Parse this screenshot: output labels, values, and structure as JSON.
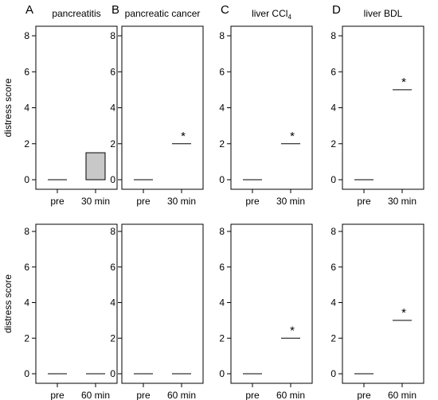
{
  "figure": {
    "ylabel": "distress score",
    "yticks": [
      0,
      2,
      4,
      6,
      8
    ],
    "ylim": [
      0,
      8
    ]
  },
  "chart_data": [
    {
      "type": "box",
      "panel": "A",
      "row": 0,
      "col": 0,
      "title": "pancreatitis",
      "title_sub": "",
      "categories": [
        "pre",
        "30 min"
      ],
      "boxes": [
        {
          "median": 0,
          "q1": 0,
          "q3": 0
        },
        {
          "median": 0,
          "q1": 0,
          "q3": 1.5
        }
      ],
      "significant": [
        false,
        false
      ]
    },
    {
      "type": "box",
      "panel": "B",
      "row": 0,
      "col": 1,
      "title": "pancreatic cancer",
      "title_sub": "",
      "categories": [
        "pre",
        "30 min"
      ],
      "boxes": [
        {
          "median": 0,
          "q1": 0,
          "q3": 0
        },
        {
          "median": 2,
          "q1": 2,
          "q3": 2
        }
      ],
      "significant": [
        false,
        true
      ]
    },
    {
      "type": "box",
      "panel": "C",
      "row": 0,
      "col": 2,
      "title": "liver CCl",
      "title_sub": "4",
      "categories": [
        "pre",
        "30 min"
      ],
      "boxes": [
        {
          "median": 0,
          "q1": 0,
          "q3": 0
        },
        {
          "median": 2,
          "q1": 2,
          "q3": 2
        }
      ],
      "significant": [
        false,
        true
      ]
    },
    {
      "type": "box",
      "panel": "D",
      "row": 0,
      "col": 3,
      "title": "liver BDL",
      "title_sub": "",
      "categories": [
        "pre",
        "30 min"
      ],
      "boxes": [
        {
          "median": 0,
          "q1": 0,
          "q3": 0
        },
        {
          "median": 5,
          "q1": 5,
          "q3": 5
        }
      ],
      "significant": [
        false,
        true
      ]
    },
    {
      "type": "box",
      "panel": "",
      "row": 1,
      "col": 0,
      "title": "",
      "title_sub": "",
      "categories": [
        "pre",
        "60 min"
      ],
      "boxes": [
        {
          "median": 0,
          "q1": 0,
          "q3": 0
        },
        {
          "median": 0,
          "q1": 0,
          "q3": 0
        }
      ],
      "significant": [
        false,
        false
      ]
    },
    {
      "type": "box",
      "panel": "",
      "row": 1,
      "col": 1,
      "title": "",
      "title_sub": "",
      "categories": [
        "pre",
        "60 min"
      ],
      "boxes": [
        {
          "median": 0,
          "q1": 0,
          "q3": 0
        },
        {
          "median": 0,
          "q1": 0,
          "q3": 0
        }
      ],
      "significant": [
        false,
        false
      ]
    },
    {
      "type": "box",
      "panel": "",
      "row": 1,
      "col": 2,
      "title": "",
      "title_sub": "",
      "categories": [
        "pre",
        "60 min"
      ],
      "boxes": [
        {
          "median": 0,
          "q1": 0,
          "q3": 0
        },
        {
          "median": 2,
          "q1": 2,
          "q3": 2
        }
      ],
      "significant": [
        false,
        true
      ]
    },
    {
      "type": "box",
      "panel": "",
      "row": 1,
      "col": 3,
      "title": "",
      "title_sub": "",
      "categories": [
        "pre",
        "60 min"
      ],
      "boxes": [
        {
          "median": 0,
          "q1": 0,
          "q3": 0
        },
        {
          "median": 3,
          "q1": 3,
          "q3": 3
        }
      ],
      "significant": [
        false,
        true
      ]
    }
  ],
  "colors": {
    "box_fill": "#c8c8c8",
    "stroke": "#000000"
  },
  "significance_marker": "*"
}
